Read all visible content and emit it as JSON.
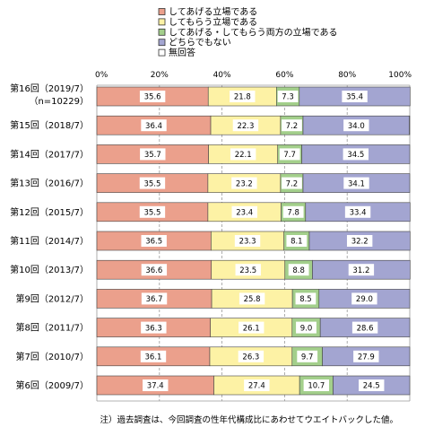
{
  "chart_data": {
    "type": "bar",
    "orientation": "horizontal",
    "stacked": "percent",
    "xlim": [
      0,
      100
    ],
    "x_tick_labels": [
      "0%",
      "20%",
      "40%",
      "60%",
      "80%",
      "100%"
    ],
    "grid": true,
    "legend_position": "top",
    "categories": [
      [
        "第16回（2019/7）",
        "（n=10229）"
      ],
      [
        "第15回（2018/7）"
      ],
      [
        "第14回（2017/7）"
      ],
      [
        "第13回（2016/7）"
      ],
      [
        "第12回（2015/7）"
      ],
      [
        "第11回（2014/7）"
      ],
      [
        "第10回（2013/7）"
      ],
      [
        "第9回（2012/7）"
      ],
      [
        "第8回（2011/7）"
      ],
      [
        "第7回（2010/7）"
      ],
      [
        "第6回（2009/7）"
      ]
    ],
    "series": [
      {
        "name": "してあげる立場である",
        "color": "#eba08c",
        "values": [
          35.6,
          36.4,
          35.7,
          35.5,
          35.5,
          36.5,
          36.6,
          36.7,
          36.3,
          36.1,
          37.4
        ]
      },
      {
        "name": "してもらう立場である",
        "color": "#fdf2a5",
        "values": [
          21.8,
          22.3,
          22.1,
          23.2,
          23.4,
          23.3,
          23.5,
          25.8,
          26.1,
          26.3,
          27.4
        ]
      },
      {
        "name": "してあげる・してもらう両方の立場である",
        "color": "#a3cf8b",
        "values": [
          7.3,
          7.2,
          7.7,
          7.2,
          7.8,
          8.1,
          8.8,
          8.5,
          9.0,
          9.7,
          10.7
        ]
      },
      {
        "name": "どちらでもない",
        "color": "#a3a5d1",
        "values": [
          35.4,
          34.0,
          34.5,
          34.1,
          33.4,
          32.2,
          31.2,
          29.0,
          28.6,
          27.9,
          24.5
        ]
      },
      {
        "name": "無回答",
        "color": "#ffffff",
        "values": [
          0.0,
          0.1,
          0.0,
          0.0,
          0.0,
          0.0,
          0.0,
          0.0,
          0.0,
          0.0,
          0.0
        ]
      }
    ],
    "value_labels": [
      [
        "35.6",
        "21.8",
        "7.3",
        "35.4"
      ],
      [
        "36.4",
        "22.3",
        "7.2",
        "34.0"
      ],
      [
        "35.7",
        "22.1",
        "7.7",
        "34.5"
      ],
      [
        "35.5",
        "23.2",
        "7.2",
        "34.1"
      ],
      [
        "35.5",
        "23.4",
        "7.8",
        "33.4"
      ],
      [
        "36.5",
        "23.3",
        "8.1",
        "32.2"
      ],
      [
        "36.6",
        "23.5",
        "8.8",
        "31.2"
      ],
      [
        "36.7",
        "25.8",
        "8.5",
        "29.0"
      ],
      [
        "36.3",
        "26.1",
        "9.0",
        "28.6"
      ],
      [
        "36.1",
        "26.3",
        "9.7",
        "27.9"
      ],
      [
        "37.4",
        "27.4",
        "10.7",
        "24.5"
      ]
    ],
    "note": "注）過去調査は、今回調査の性年代構成比にあわせてウエイトバックした値。"
  }
}
